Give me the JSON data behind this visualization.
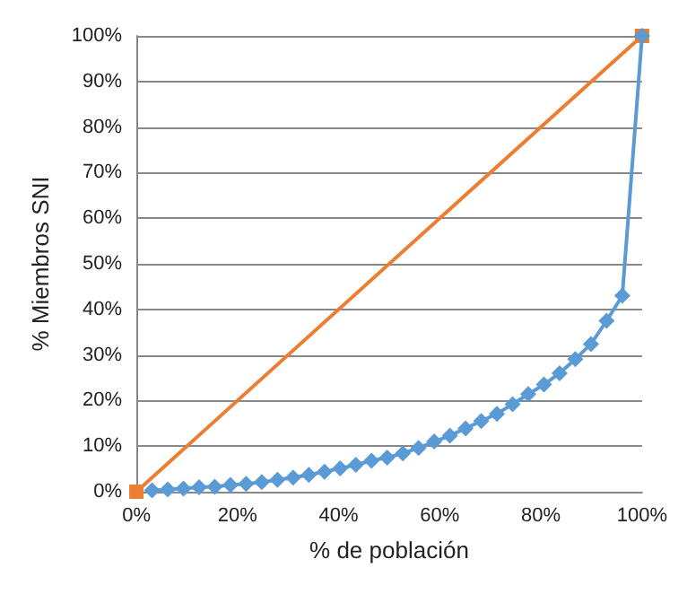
{
  "chart_data": {
    "type": "line",
    "xlabel": "% de población",
    "ylabel": "% Miembros SNI",
    "xlim": [
      0,
      100
    ],
    "ylim": [
      0,
      100
    ],
    "xticks": [
      {
        "value": 0,
        "label": "0%"
      },
      {
        "value": 20,
        "label": "20%"
      },
      {
        "value": 40,
        "label": "40%"
      },
      {
        "value": 60,
        "label": "60%"
      },
      {
        "value": 80,
        "label": "80%"
      },
      {
        "value": 100,
        "label": "100%"
      }
    ],
    "yticks": [
      {
        "value": 0,
        "label": "0%"
      },
      {
        "value": 10,
        "label": "10%"
      },
      {
        "value": 20,
        "label": "20%"
      },
      {
        "value": 30,
        "label": "30%"
      },
      {
        "value": 40,
        "label": "40%"
      },
      {
        "value": 50,
        "label": "50%"
      },
      {
        "value": 60,
        "label": "60%"
      },
      {
        "value": 70,
        "label": "70%"
      },
      {
        "value": 80,
        "label": "80%"
      },
      {
        "value": 90,
        "label": "90%"
      },
      {
        "value": 100,
        "label": "100%"
      }
    ],
    "grid": "y",
    "series": [
      {
        "color": "#ed7d31",
        "marker": "square",
        "x": [
          0,
          100
        ],
        "values": [
          0,
          100
        ]
      },
      {
        "color": "#5b9bd5",
        "marker": "diamond",
        "x": [
          3.1,
          6.2,
          9.3,
          12.4,
          15.5,
          18.6,
          21.7,
          24.8,
          27.9,
          31,
          34.1,
          37.2,
          40.3,
          43.4,
          46.5,
          49.6,
          52.7,
          55.8,
          58.9,
          62,
          65.1,
          68.2,
          71.3,
          74.4,
          77.5,
          80.6,
          83.7,
          86.8,
          89.9,
          93,
          96.1,
          100
        ],
        "values": [
          0.3,
          0.5,
          0.7,
          1.0,
          1.1,
          1.5,
          1.7,
          2.1,
          2.6,
          3.1,
          3.7,
          4.4,
          5.1,
          5.9,
          6.8,
          7.5,
          8.4,
          9.6,
          11,
          12.3,
          13.9,
          15.5,
          17.1,
          19.2,
          21.4,
          23.5,
          26,
          29.1,
          32.4,
          37.5,
          43,
          100
        ]
      }
    ]
  }
}
